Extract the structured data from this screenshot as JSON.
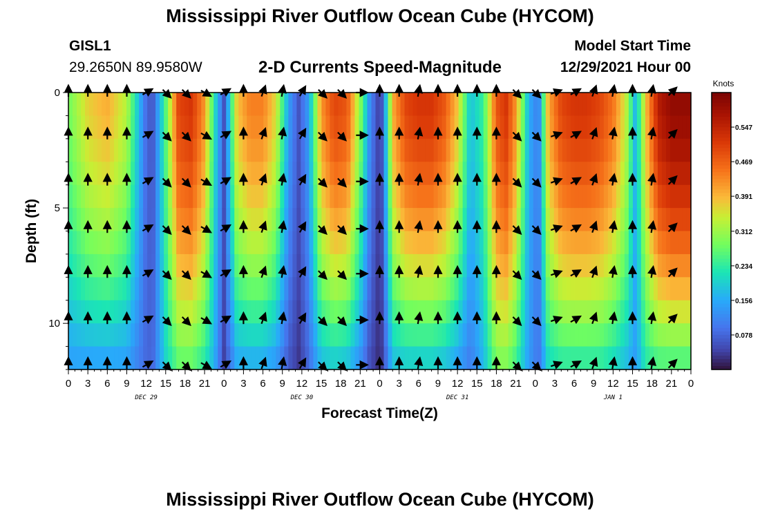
{
  "header": {
    "title": "Mississippi River Outflow Ocean Cube (HYCOM)",
    "station_id": "GISL1",
    "coordinates": "29.2650N  89.9580W",
    "subtitle": "2-D Currents Speed-Magnitude",
    "model_start_label": "Model Start Time",
    "model_start_value": "12/29/2021 Hour 00"
  },
  "footer": {
    "title": "Mississippi River Outflow Ocean Cube (HYCOM)"
  },
  "chart_data": {
    "type": "heatmap",
    "xlabel": "Forecast Time(Z)",
    "ylabel": "Depth (ft)",
    "x_range_hours": [
      0,
      96
    ],
    "y_range_ft": [
      0,
      12
    ],
    "y_inverted": true,
    "x_tick_labels": [
      "0",
      "3",
      "6",
      "9",
      "12",
      "15",
      "18",
      "21",
      "0",
      "3",
      "6",
      "9",
      "12",
      "15",
      "18",
      "21",
      "0",
      "3",
      "6",
      "9",
      "12",
      "15",
      "18",
      "21",
      "0",
      "3",
      "6",
      "9",
      "12",
      "15",
      "18",
      "21",
      "0"
    ],
    "y_tick_values": [
      0,
      5,
      10
    ],
    "y_tick_labels": [
      "0",
      "5",
      "10"
    ],
    "date_labels": [
      {
        "label": "DEC 29",
        "hour": 12
      },
      {
        "label": "DEC 30",
        "hour": 36
      },
      {
        "label": "DEC 31",
        "hour": 60
      },
      {
        "label": "JAN 1",
        "hour": 84
      }
    ],
    "colorbar": {
      "units": "Knots",
      "range": [
        0.0,
        0.625
      ],
      "ticks": [
        0.078,
        0.156,
        0.234,
        0.312,
        0.391,
        0.469,
        0.547
      ],
      "tick_labels": [
        "0.078",
        "0.156",
        "0.234",
        "0.312",
        "0.391",
        "0.469",
        "0.547"
      ],
      "colormap": "turbo"
    },
    "speed_profile": {
      "hours": [
        0,
        3,
        6,
        9,
        12,
        13,
        15,
        17,
        19,
        21,
        22.5,
        24,
        26,
        28,
        30,
        32,
        34,
        35.5,
        37,
        39,
        41,
        43,
        45,
        46.5,
        47.5,
        48,
        48.5,
        50,
        52,
        54,
        56,
        58,
        60,
        62,
        64,
        66,
        67.5,
        69,
        71,
        72.5,
        74,
        76,
        78,
        80,
        82,
        84,
        86,
        87.5,
        89,
        91,
        93,
        96
      ],
      "surface_knots": [
        0.28,
        0.37,
        0.4,
        0.33,
        0.08,
        0.06,
        0.26,
        0.5,
        0.52,
        0.42,
        0.22,
        0.06,
        0.38,
        0.44,
        0.44,
        0.36,
        0.14,
        0.06,
        0.14,
        0.42,
        0.5,
        0.48,
        0.3,
        0.12,
        0.06,
        0.03,
        0.08,
        0.4,
        0.5,
        0.52,
        0.52,
        0.48,
        0.38,
        0.18,
        0.24,
        0.48,
        0.52,
        0.42,
        0.16,
        0.1,
        0.4,
        0.5,
        0.52,
        0.52,
        0.5,
        0.45,
        0.34,
        0.16,
        0.38,
        0.56,
        0.6,
        0.6
      ],
      "bottom_knots": [
        0.14,
        0.14,
        0.14,
        0.14,
        0.08,
        0.08,
        0.2,
        0.26,
        0.26,
        0.22,
        0.16,
        0.04,
        0.15,
        0.15,
        0.15,
        0.13,
        0.06,
        0.03,
        0.08,
        0.17,
        0.18,
        0.17,
        0.12,
        0.05,
        0.03,
        0.02,
        0.04,
        0.17,
        0.18,
        0.18,
        0.18,
        0.17,
        0.14,
        0.1,
        0.17,
        0.28,
        0.28,
        0.24,
        0.14,
        0.09,
        0.2,
        0.22,
        0.22,
        0.22,
        0.22,
        0.2,
        0.17,
        0.14,
        0.22,
        0.24,
        0.24,
        0.24
      ]
    },
    "vector_depths_ft": [
      0.0,
      1.85,
      3.85,
      5.9,
      7.85,
      9.85,
      11.8
    ],
    "vector_times_hours": [
      0,
      3,
      6,
      9,
      12,
      15,
      18,
      21,
      24,
      27,
      30,
      33,
      36,
      39,
      42,
      45,
      48,
      51,
      54,
      57,
      60,
      63,
      66,
      69,
      72,
      75,
      78,
      81,
      84,
      87,
      90,
      93
    ],
    "vector_direction_deg": [
      0,
      0,
      0,
      0,
      60,
      135,
      135,
      120,
      60,
      0,
      20,
      10,
      30,
      135,
      135,
      90,
      0,
      0,
      10,
      0,
      0,
      0,
      0,
      135,
      135,
      70,
      60,
      20,
      10,
      0,
      10,
      45
    ]
  }
}
